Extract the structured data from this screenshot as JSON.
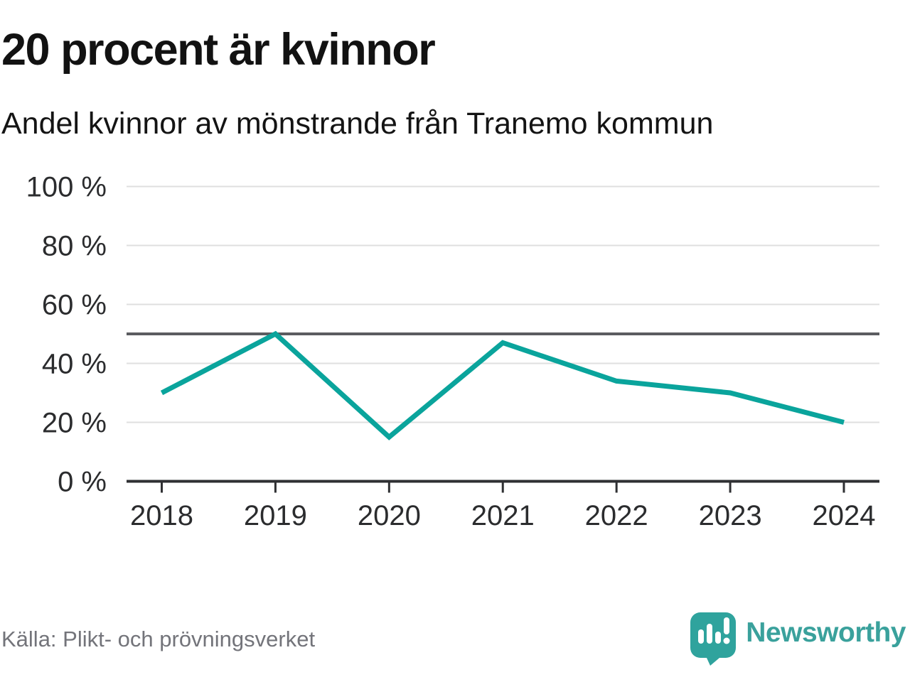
{
  "header": {
    "title": "20 procent är kvinnor",
    "subtitle": "Andel kvinnor av mönstrande från Tranemo kommun"
  },
  "chart_data": {
    "type": "line",
    "title": "20 procent är kvinnor",
    "subtitle": "Andel kvinnor av mönstrande från Tranemo kommun",
    "categories": [
      "2018",
      "2019",
      "2020",
      "2021",
      "2022",
      "2023",
      "2024"
    ],
    "series": [
      {
        "name": "Andel kvinnor",
        "values": [
          30,
          50,
          15,
          47,
          34,
          30,
          20
        ]
      }
    ],
    "unit": "%",
    "ylim": [
      0,
      100
    ],
    "yticks": [
      0,
      20,
      40,
      60,
      80,
      100
    ],
    "ytick_suffix": " %",
    "reference_line": 50,
    "grid": true,
    "legend": "none"
  },
  "footer": {
    "source": "Källa: Plikt- och prövningsverket",
    "brand": "Newsworthy"
  },
  "colors": {
    "line": "#0aa49c",
    "reference": "#5b5c60",
    "grid": "#dfdfdf",
    "axis": "#2f3033",
    "tick_label": "#2b2c2e",
    "source": "#73747a",
    "brand": "#3aa19c",
    "logo_bubble": "#2fa39d"
  }
}
